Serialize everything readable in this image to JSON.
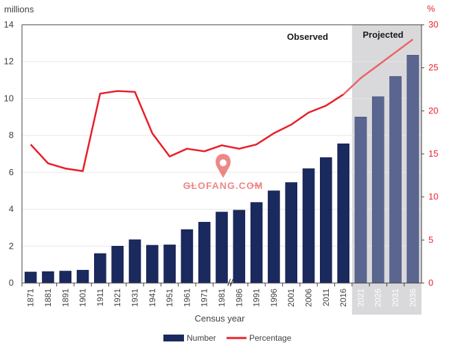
{
  "chart_data": {
    "type": "bar",
    "title": "",
    "xlabel": "Census year",
    "ylabel_left_unit": "millions",
    "ylabel_right_unit": "%",
    "ylim_left": [
      0,
      14
    ],
    "ylim_right": [
      0,
      30
    ],
    "yticks_left": [
      "0",
      "2",
      "4",
      "6",
      "8",
      "10",
      "12",
      "14"
    ],
    "yticks_right": [
      "0",
      "5",
      "10",
      "15",
      "20",
      "25",
      "30"
    ],
    "categories": [
      "1871",
      "1881",
      "1891",
      "1901",
      "1911",
      "1921",
      "1931",
      "1941",
      "1951",
      "1961",
      "1971",
      "1981",
      "1986",
      "1991",
      "1996",
      "2001",
      "2006",
      "2011",
      "2016",
      "2021",
      "2026",
      "2031",
      "2036"
    ],
    "projected_from_index": 19,
    "series": [
      {
        "name": "Number",
        "type": "bar",
        "axis": "left",
        "color": "#1a2a5e",
        "projected_color": "#5b6690",
        "values": [
          0.6,
          0.62,
          0.65,
          0.7,
          1.6,
          2.0,
          2.35,
          2.05,
          2.07,
          2.9,
          3.3,
          3.85,
          3.95,
          4.37,
          5.0,
          5.45,
          6.2,
          6.8,
          7.55,
          9.0,
          10.1,
          11.2,
          12.35
        ]
      },
      {
        "name": "Percentage",
        "type": "line",
        "axis": "right",
        "color": "#e8202a",
        "projected_color": "#e8656a",
        "values": [
          16.1,
          13.9,
          13.3,
          13.0,
          22.0,
          22.3,
          22.2,
          17.4,
          14.7,
          15.6,
          15.3,
          16.0,
          15.6,
          16.1,
          17.4,
          18.4,
          19.8,
          20.6,
          21.9,
          23.8,
          25.3,
          26.8,
          28.3
        ]
      }
    ],
    "annotations": [
      "Observed",
      "Projected"
    ],
    "legend_position": "bottom"
  },
  "watermark": {
    "text": "GLOFANG.COM",
    "icon": "location-pin-logo",
    "color": "#e02828"
  },
  "colors": {
    "bar": "#1a2a5e",
    "bar_projected": "#5b6690",
    "line": "#e8202a",
    "projected_band": "#d9d9dc",
    "axis_text": "#404040"
  }
}
